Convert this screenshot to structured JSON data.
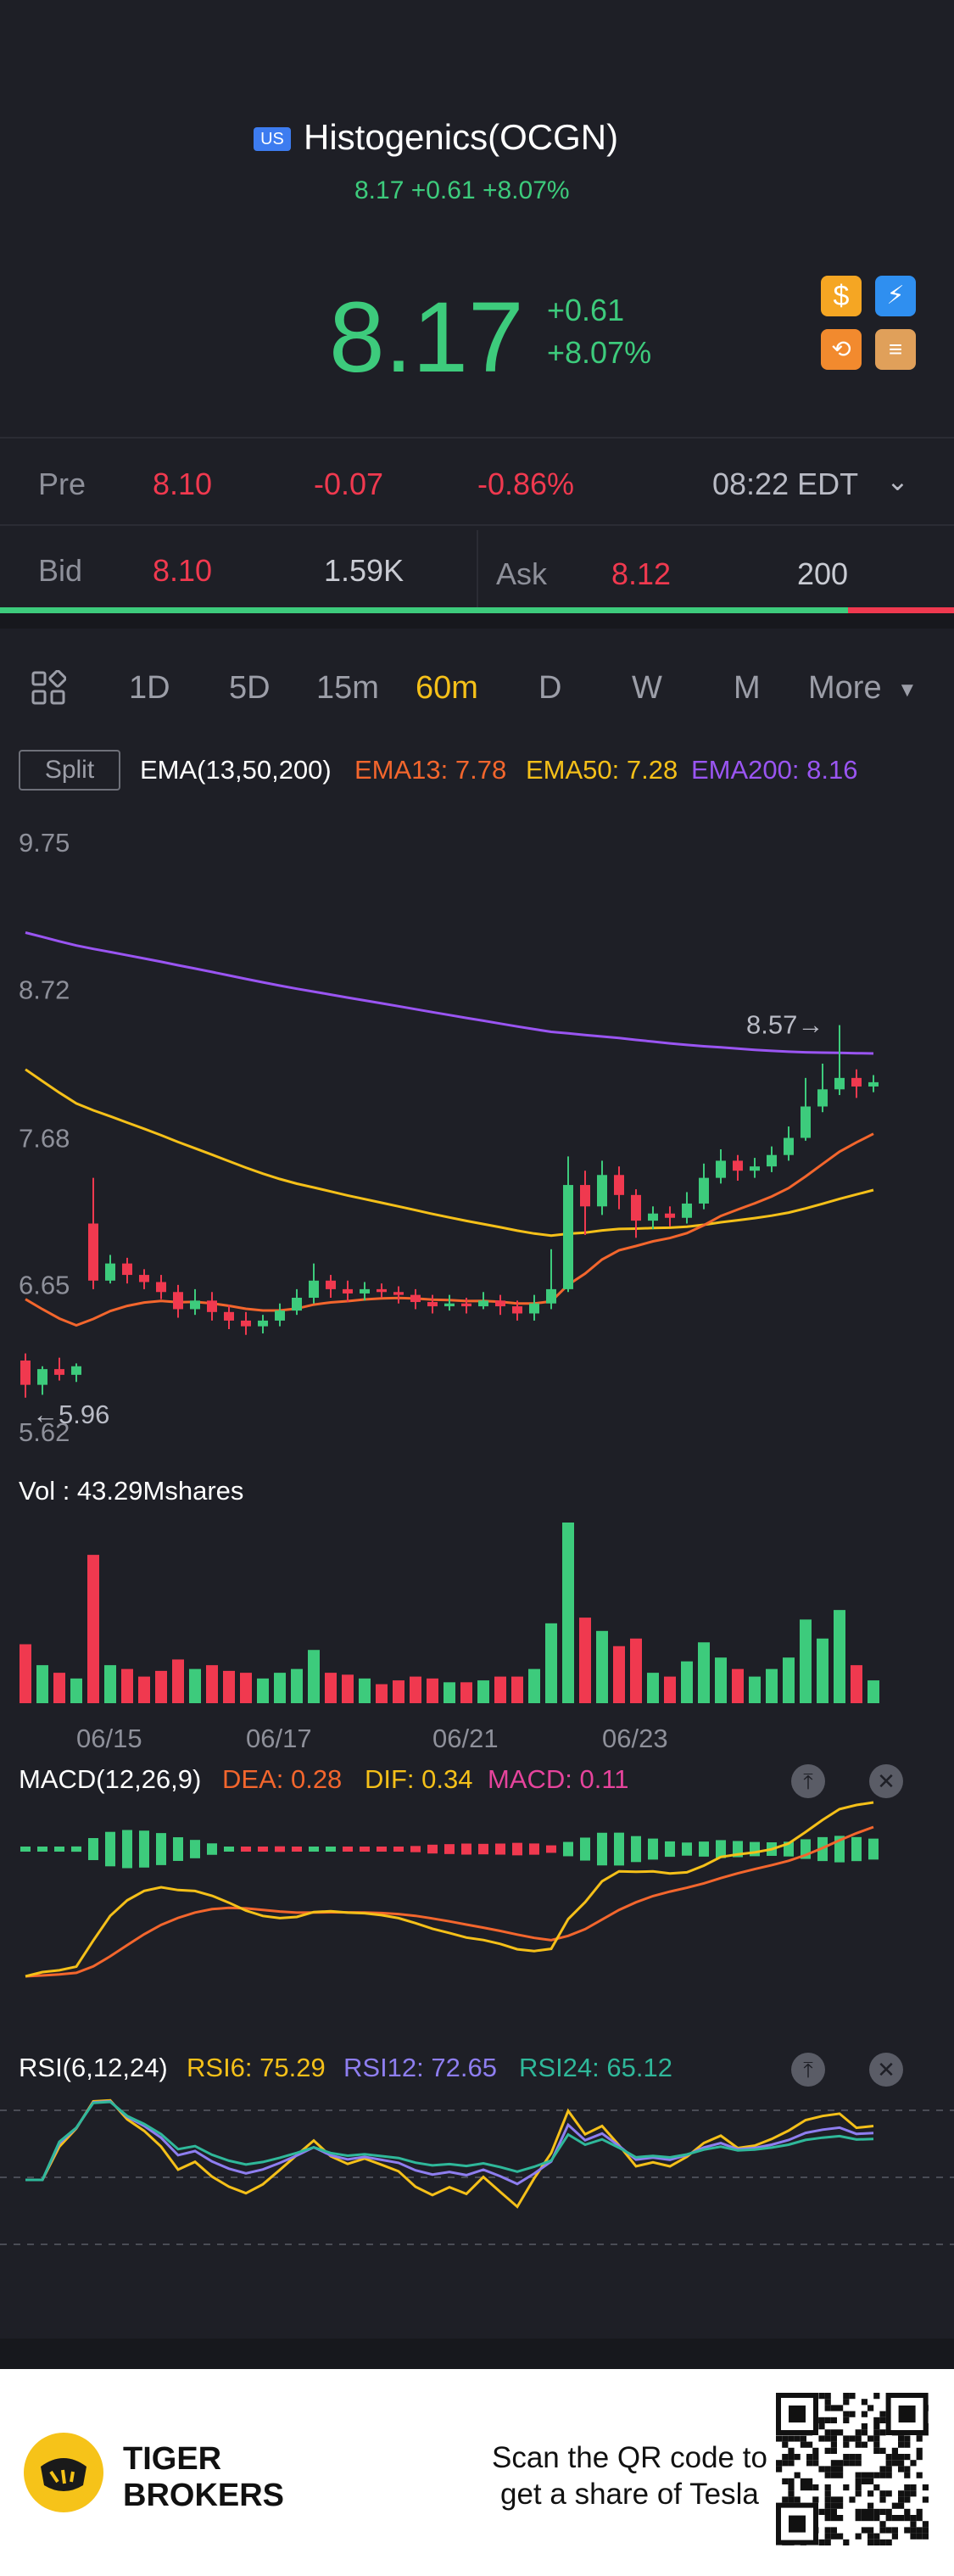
{
  "header": {
    "market_badge": "US",
    "title": "Histogenics(OCGN)",
    "subtitle": "8.17 +0.61 +8.07%",
    "price": "8.17",
    "change": "+0.61",
    "change_pct": "+8.07%"
  },
  "pre": {
    "label": "Pre",
    "price": "8.10",
    "change": "-0.07",
    "change_pct": "-0.86%",
    "time": "08:22 EDT"
  },
  "quote": {
    "bid_label": "Bid",
    "bid": "8.10",
    "bid_size": "1.59K",
    "ask_label": "Ask",
    "ask": "8.12",
    "ask_size": "200"
  },
  "tabs": [
    "1D",
    "5D",
    "15m",
    "60m",
    "D",
    "W",
    "M",
    "More"
  ],
  "active_tab": "60m",
  "indicator": {
    "split_label": "Split",
    "name": "EMA(13,50,200)",
    "ema13": "EMA13: 7.78",
    "ema50": "EMA50: 7.28",
    "ema200": "EMA200: 8.16"
  },
  "colors": {
    "up": "#3dcb7c",
    "down": "#f0394f",
    "ema13": "#f3662d",
    "ema50": "#f5c019",
    "ema200": "#9a55f2",
    "dea": "#f3662d",
    "dif": "#f5c019",
    "rsi6": "#f5c019",
    "rsi12": "#8e7ef0",
    "rsi24": "#2fb89a"
  },
  "chart_data": [
    {
      "type": "candlestick",
      "y_ticks": [
        "9.75",
        "8.72",
        "7.68",
        "6.65",
        "5.62"
      ],
      "ylim": [
        5.62,
        9.75
      ],
      "annotations": {
        "high": "8.57",
        "low": "5.96"
      },
      "x_ticks": [
        "06/15",
        "06/17",
        "06/21",
        "06/23"
      ],
      "candles": [
        [
          6.22,
          6.05,
          6.27,
          5.96
        ],
        [
          6.05,
          6.16,
          6.18,
          5.98
        ],
        [
          6.16,
          6.12,
          6.24,
          6.08
        ],
        [
          6.12,
          6.18,
          6.2,
          6.07
        ],
        [
          7.18,
          6.78,
          7.5,
          6.72
        ],
        [
          6.78,
          6.9,
          6.96,
          6.76
        ],
        [
          6.9,
          6.82,
          6.94,
          6.76
        ],
        [
          6.82,
          6.77,
          6.86,
          6.72
        ],
        [
          6.77,
          6.7,
          6.82,
          6.65
        ],
        [
          6.7,
          6.58,
          6.75,
          6.52
        ],
        [
          6.58,
          6.64,
          6.72,
          6.54
        ],
        [
          6.64,
          6.56,
          6.7,
          6.5
        ],
        [
          6.56,
          6.5,
          6.61,
          6.44
        ],
        [
          6.5,
          6.46,
          6.56,
          6.4
        ],
        [
          6.46,
          6.5,
          6.54,
          6.41
        ],
        [
          6.5,
          6.57,
          6.62,
          6.46
        ],
        [
          6.57,
          6.66,
          6.72,
          6.54
        ],
        [
          6.66,
          6.78,
          6.9,
          6.62
        ],
        [
          6.78,
          6.72,
          6.82,
          6.66
        ],
        [
          6.72,
          6.69,
          6.78,
          6.63
        ],
        [
          6.69,
          6.72,
          6.77,
          6.64
        ],
        [
          6.72,
          6.7,
          6.76,
          6.66
        ],
        [
          6.7,
          6.68,
          6.74,
          6.62
        ],
        [
          6.68,
          6.63,
          6.72,
          6.58
        ],
        [
          6.63,
          6.6,
          6.68,
          6.55
        ],
        [
          6.6,
          6.62,
          6.68,
          6.57
        ],
        [
          6.62,
          6.6,
          6.66,
          6.55
        ],
        [
          6.6,
          6.64,
          6.7,
          6.58
        ],
        [
          6.64,
          6.6,
          6.68,
          6.54
        ],
        [
          6.6,
          6.55,
          6.64,
          6.5
        ],
        [
          6.55,
          6.62,
          6.68,
          6.5
        ],
        [
          6.62,
          6.72,
          7.0,
          6.58
        ],
        [
          6.72,
          7.45,
          7.65,
          6.7
        ],
        [
          7.45,
          7.3,
          7.55,
          7.1
        ],
        [
          7.3,
          7.52,
          7.62,
          7.24
        ],
        [
          7.52,
          7.38,
          7.58,
          7.28
        ],
        [
          7.38,
          7.2,
          7.42,
          7.08
        ],
        [
          7.2,
          7.25,
          7.3,
          7.14
        ],
        [
          7.25,
          7.22,
          7.3,
          7.16
        ],
        [
          7.22,
          7.32,
          7.4,
          7.18
        ],
        [
          7.32,
          7.5,
          7.6,
          7.28
        ],
        [
          7.5,
          7.62,
          7.7,
          7.46
        ],
        [
          7.62,
          7.55,
          7.66,
          7.48
        ],
        [
          7.55,
          7.58,
          7.64,
          7.5
        ],
        [
          7.58,
          7.66,
          7.72,
          7.54
        ],
        [
          7.66,
          7.78,
          7.86,
          7.62
        ],
        [
          7.78,
          8.0,
          8.2,
          7.76
        ],
        [
          8.0,
          8.12,
          8.3,
          7.96
        ],
        [
          8.12,
          8.2,
          8.57,
          8.08
        ],
        [
          8.2,
          8.14,
          8.26,
          8.06
        ],
        [
          8.14,
          8.17,
          8.22,
          8.1
        ]
      ],
      "volume_label": "Vol  : 43.29Mshares"
    },
    {
      "type": "macd",
      "name": "MACD(12,26,9)",
      "dea": "DEA: 0.28",
      "dif": "DIF: 0.34",
      "macd": "MACD: 0.11"
    },
    {
      "type": "rsi",
      "name": "RSI(6,12,24)",
      "rsi6": "RSI6: 75.29",
      "rsi12": "RSI12: 72.65",
      "rsi24": "RSI24: 65.12"
    }
  ],
  "footer": {
    "brand_line1": "TIGER",
    "brand_line2": "BROKERS",
    "cta_line1": "Scan the QR code to",
    "cta_line2": "get a share of Tesla"
  }
}
